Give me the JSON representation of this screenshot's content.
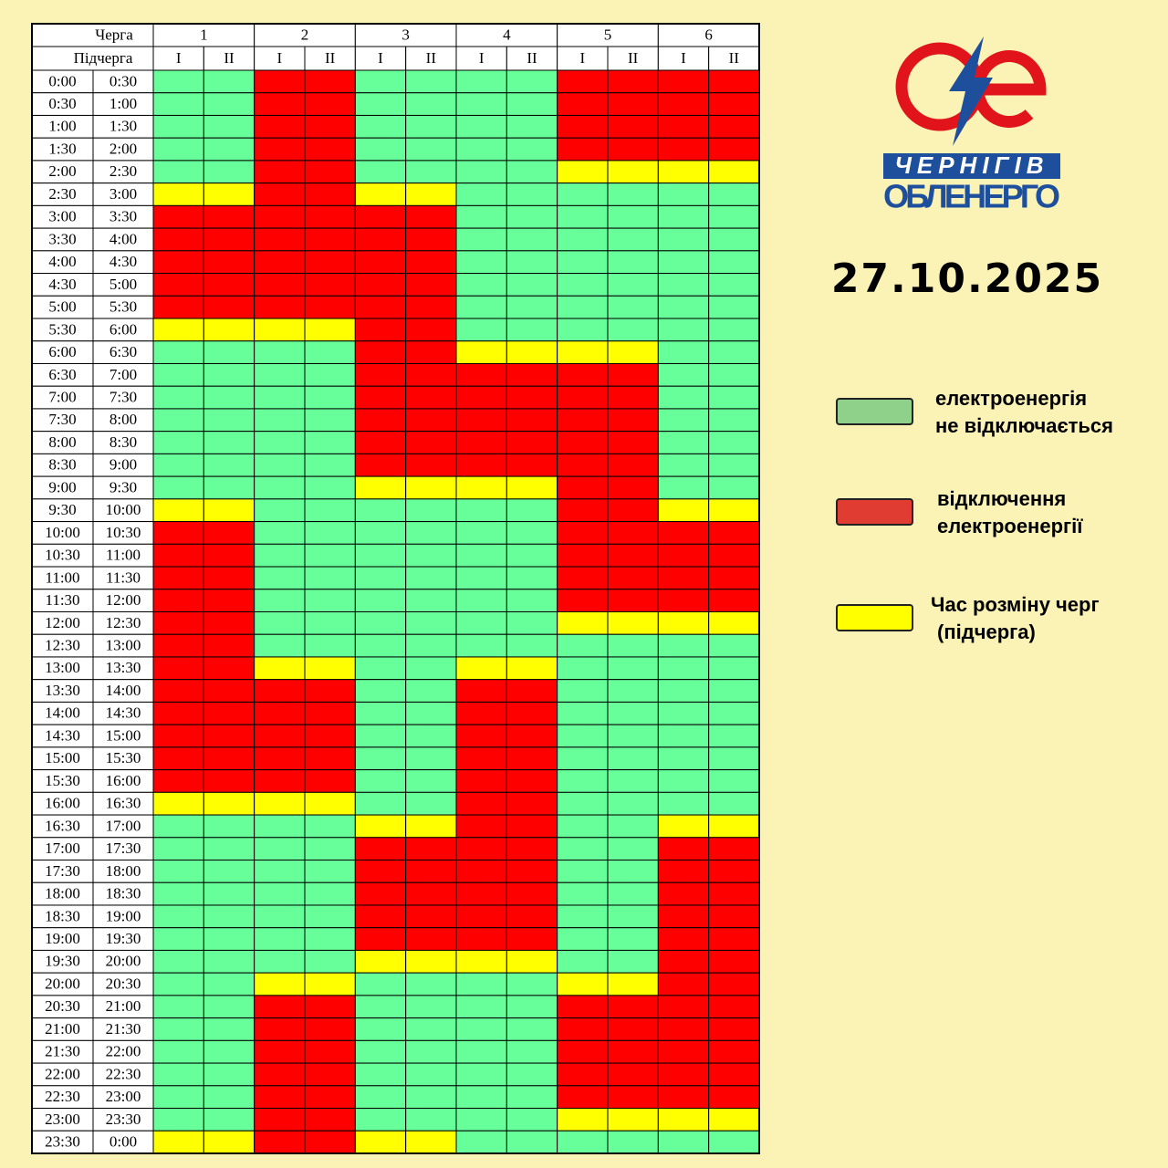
{
  "logo": {
    "line1": "ЧЕРНІГІВ",
    "line2": "ОБЛЕНЕРГО"
  },
  "date": "27.10.2025",
  "table": {
    "queue_label": "Черга",
    "subqueue_label": "Підчерга",
    "queues": [
      "1",
      "2",
      "3",
      "4",
      "5",
      "6"
    ],
    "subqueues": [
      "I",
      "II"
    ],
    "rows": [
      {
        "from": "0:00",
        "to": "0:30",
        "cells": [
          "#6f9",
          "#f00",
          "#6f9",
          "#6f9",
          "#f00",
          "#f00"
        ]
      },
      {
        "from": "0:30",
        "to": "1:00",
        "cells": [
          "#6f9",
          "#f00",
          "#6f9",
          "#6f9",
          "#f00",
          "#f00"
        ]
      },
      {
        "from": "1:00",
        "to": "1:30",
        "cells": [
          "#6f9",
          "#f00",
          "#6f9",
          "#6f9",
          "#f00",
          "#f00"
        ]
      },
      {
        "from": "1:30",
        "to": "2:00",
        "cells": [
          "#6f9",
          "#f00",
          "#6f9",
          "#6f9",
          "#f00",
          "#f00"
        ]
      },
      {
        "from": "2:00",
        "to": "2:30",
        "cells": [
          "#6f9",
          "#f00",
          "#6f9",
          "#6f9",
          "#ff0",
          "#ff0"
        ]
      },
      {
        "from": "2:30",
        "to": "3:00",
        "cells": [
          "#ff0",
          "#f00",
          "#ff0",
          "#6f9",
          "#6f9",
          "#6f9"
        ]
      },
      {
        "from": "3:00",
        "to": "3:30",
        "cells": [
          "#f00",
          "#f00",
          "#f00",
          "#6f9",
          "#6f9",
          "#6f9"
        ]
      },
      {
        "from": "3:30",
        "to": "4:00",
        "cells": [
          "#f00",
          "#f00",
          "#f00",
          "#6f9",
          "#6f9",
          "#6f9"
        ]
      },
      {
        "from": "4:00",
        "to": "4:30",
        "cells": [
          "#f00",
          "#f00",
          "#f00",
          "#6f9",
          "#6f9",
          "#6f9"
        ]
      },
      {
        "from": "4:30",
        "to": "5:00",
        "cells": [
          "#f00",
          "#f00",
          "#f00",
          "#6f9",
          "#6f9",
          "#6f9"
        ]
      },
      {
        "from": "5:00",
        "to": "5:30",
        "cells": [
          "#f00",
          "#f00",
          "#f00",
          "#6f9",
          "#6f9",
          "#6f9"
        ]
      },
      {
        "from": "5:30",
        "to": "6:00",
        "cells": [
          "#ff0",
          "#ff0",
          "#f00",
          "#6f9",
          "#6f9",
          "#6f9"
        ]
      },
      {
        "from": "6:00",
        "to": "6:30",
        "cells": [
          "#6f9",
          "#6f9",
          "#f00",
          "#ff0",
          "#ff0",
          "#6f9"
        ]
      },
      {
        "from": "6:30",
        "to": "7:00",
        "cells": [
          "#6f9",
          "#6f9",
          "#f00",
          "#f00",
          "#f00",
          "#6f9"
        ]
      },
      {
        "from": "7:00",
        "to": "7:30",
        "cells": [
          "#6f9",
          "#6f9",
          "#f00",
          "#f00",
          "#f00",
          "#6f9"
        ]
      },
      {
        "from": "7:30",
        "to": "8:00",
        "cells": [
          "#6f9",
          "#6f9",
          "#f00",
          "#f00",
          "#f00",
          "#6f9"
        ]
      },
      {
        "from": "8:00",
        "to": "8:30",
        "cells": [
          "#6f9",
          "#6f9",
          "#f00",
          "#f00",
          "#f00",
          "#6f9"
        ]
      },
      {
        "from": "8:30",
        "to": "9:00",
        "cells": [
          "#6f9",
          "#6f9",
          "#f00",
          "#f00",
          "#f00",
          "#6f9"
        ]
      },
      {
        "from": "9:00",
        "to": "9:30",
        "cells": [
          "#6f9",
          "#6f9",
          "#ff0",
          "#ff0",
          "#f00",
          "#6f9"
        ]
      },
      {
        "from": "9:30",
        "to": "10:00",
        "cells": [
          "#ff0",
          "#6f9",
          "#6f9",
          "#6f9",
          "#f00",
          "#ff0"
        ]
      },
      {
        "from": "10:00",
        "to": "10:30",
        "cells": [
          "#f00",
          "#6f9",
          "#6f9",
          "#6f9",
          "#f00",
          "#f00"
        ]
      },
      {
        "from": "10:30",
        "to": "11:00",
        "cells": [
          "#f00",
          "#6f9",
          "#6f9",
          "#6f9",
          "#f00",
          "#f00"
        ]
      },
      {
        "from": "11:00",
        "to": "11:30",
        "cells": [
          "#f00",
          "#6f9",
          "#6f9",
          "#6f9",
          "#f00",
          "#f00"
        ]
      },
      {
        "from": "11:30",
        "to": "12:00",
        "cells": [
          "#f00",
          "#6f9",
          "#6f9",
          "#6f9",
          "#f00",
          "#f00"
        ]
      },
      {
        "from": "12:00",
        "to": "12:30",
        "cells": [
          "#f00",
          "#6f9",
          "#6f9",
          "#6f9",
          "#ff0",
          "#ff0"
        ]
      },
      {
        "from": "12:30",
        "to": "13:00",
        "cells": [
          "#f00",
          "#6f9",
          "#6f9",
          "#6f9",
          "#6f9",
          "#6f9"
        ]
      },
      {
        "from": "13:00",
        "to": "13:30",
        "cells": [
          "#f00",
          "#ff0",
          "#6f9",
          "#ff0",
          "#6f9",
          "#6f9"
        ]
      },
      {
        "from": "13:30",
        "to": "14:00",
        "cells": [
          "#f00",
          "#f00",
          "#6f9",
          "#f00",
          "#6f9",
          "#6f9"
        ]
      },
      {
        "from": "14:00",
        "to": "14:30",
        "cells": [
          "#f00",
          "#f00",
          "#6f9",
          "#f00",
          "#6f9",
          "#6f9"
        ]
      },
      {
        "from": "14:30",
        "to": "15:00",
        "cells": [
          "#f00",
          "#f00",
          "#6f9",
          "#f00",
          "#6f9",
          "#6f9"
        ]
      },
      {
        "from": "15:00",
        "to": "15:30",
        "cells": [
          "#f00",
          "#f00",
          "#6f9",
          "#f00",
          "#6f9",
          "#6f9"
        ]
      },
      {
        "from": "15:30",
        "to": "16:00",
        "cells": [
          "#f00",
          "#f00",
          "#6f9",
          "#f00",
          "#6f9",
          "#6f9"
        ]
      },
      {
        "from": "16:00",
        "to": "16:30",
        "cells": [
          "#ff0",
          "#ff0",
          "#6f9",
          "#f00",
          "#6f9",
          "#6f9"
        ]
      },
      {
        "from": "16:30",
        "to": "17:00",
        "cells": [
          "#6f9",
          "#6f9",
          "#ff0",
          "#f00",
          "#6f9",
          "#ff0"
        ]
      },
      {
        "from": "17:00",
        "to": "17:30",
        "cells": [
          "#6f9",
          "#6f9",
          "#f00",
          "#f00",
          "#6f9",
          "#f00"
        ]
      },
      {
        "from": "17:30",
        "to": "18:00",
        "cells": [
          "#6f9",
          "#6f9",
          "#f00",
          "#f00",
          "#6f9",
          "#f00"
        ]
      },
      {
        "from": "18:00",
        "to": "18:30",
        "cells": [
          "#6f9",
          "#6f9",
          "#f00",
          "#f00",
          "#6f9",
          "#f00"
        ]
      },
      {
        "from": "18:30",
        "to": "19:00",
        "cells": [
          "#6f9",
          "#6f9",
          "#f00",
          "#f00",
          "#6f9",
          "#f00"
        ]
      },
      {
        "from": "19:00",
        "to": "19:30",
        "cells": [
          "#6f9",
          "#6f9",
          "#f00",
          "#f00",
          "#6f9",
          "#f00"
        ]
      },
      {
        "from": "19:30",
        "to": "20:00",
        "cells": [
          "#6f9",
          "#6f9",
          "#ff0",
          "#ff0",
          "#6f9",
          "#f00"
        ]
      },
      {
        "from": "20:00",
        "to": "20:30",
        "cells": [
          "#6f9",
          "#ff0",
          "#6f9",
          "#6f9",
          "#ff0",
          "#f00"
        ]
      },
      {
        "from": "20:30",
        "to": "21:00",
        "cells": [
          "#6f9",
          "#f00",
          "#6f9",
          "#6f9",
          "#f00",
          "#f00"
        ]
      },
      {
        "from": "21:00",
        "to": "21:30",
        "cells": [
          "#6f9",
          "#f00",
          "#6f9",
          "#6f9",
          "#f00",
          "#f00"
        ]
      },
      {
        "from": "21:30",
        "to": "22:00",
        "cells": [
          "#6f9",
          "#f00",
          "#6f9",
          "#6f9",
          "#f00",
          "#f00"
        ]
      },
      {
        "from": "22:00",
        "to": "22:30",
        "cells": [
          "#6f9",
          "#f00",
          "#6f9",
          "#6f9",
          "#f00",
          "#f00"
        ]
      },
      {
        "from": "22:30",
        "to": "23:00",
        "cells": [
          "#6f9",
          "#f00",
          "#6f9",
          "#6f9",
          "#f00",
          "#f00"
        ]
      },
      {
        "from": "23:00",
        "to": "23:30",
        "cells": [
          "#6f9",
          "#f00",
          "#6f9",
          "#6f9",
          "#ff0",
          "#ff0"
        ]
      },
      {
        "from": "23:30",
        "to": "0:00",
        "cells": [
          "#ff0",
          "#f00",
          "#ff0",
          "#6f9",
          "#6f9",
          "#6f9"
        ]
      }
    ]
  },
  "legend": [
    {
      "color": "#8fd08a",
      "lines": [
        "електроенергія",
        "не відключається"
      ]
    },
    {
      "color": "#e03c31",
      "lines": [
        "відключення",
        "електроенергії"
      ]
    },
    {
      "color": "#ffff00",
      "lines": [
        "Час розміну черг",
        "(підчерга)"
      ]
    }
  ]
}
